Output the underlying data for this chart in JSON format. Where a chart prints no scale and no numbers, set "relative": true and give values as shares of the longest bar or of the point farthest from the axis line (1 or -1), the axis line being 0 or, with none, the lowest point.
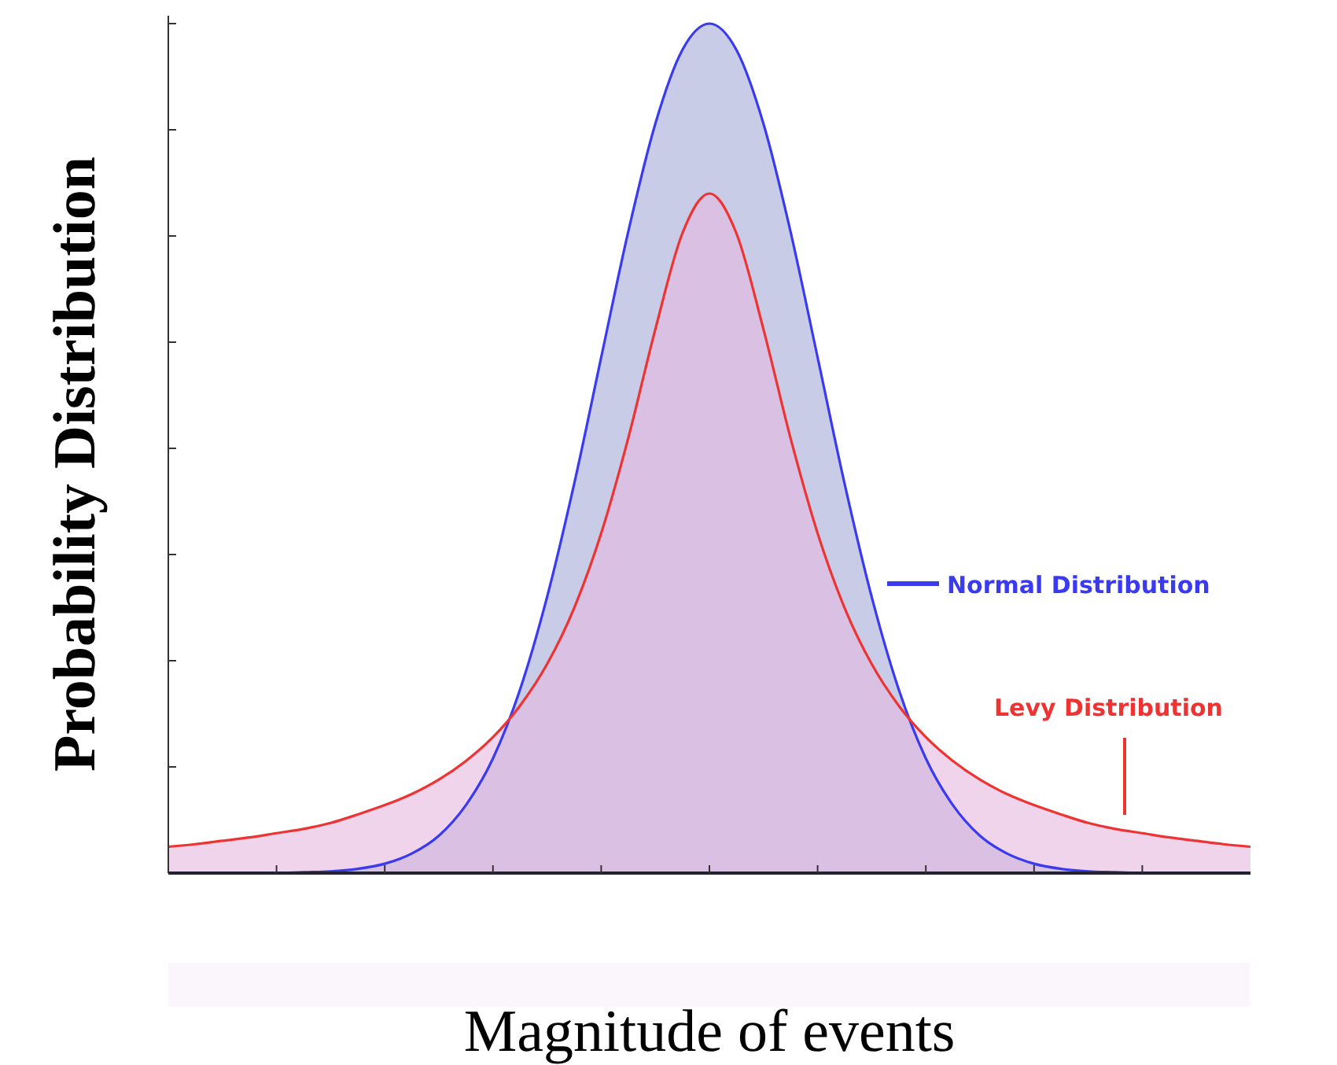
{
  "chart_data": {
    "type": "area",
    "relative": true,
    "xlabel": "Magnitude of events",
    "ylabel": "Probability Distribution",
    "legend": "right",
    "categories": [
      null,
      null,
      null,
      null,
      null,
      null,
      null,
      null,
      null,
      null,
      null,
      null,
      null,
      null,
      null,
      null,
      null,
      null,
      null,
      null,
      null,
      null,
      null,
      null,
      null,
      null,
      null,
      null,
      null,
      null,
      null,
      null,
      null,
      null,
      null,
      null,
      null,
      null,
      null,
      null,
      null
    ],
    "series": [
      {
        "name": "Normal Distribution",
        "color": "#3a3af0",
        "values": [
          0,
          0,
          0,
          0,
          0,
          0.001,
          0.002,
          0.005,
          0.011,
          0.023,
          0.044,
          0.08,
          0.135,
          0.216,
          0.325,
          0.458,
          0.607,
          0.755,
          0.882,
          0.969,
          1,
          0.969,
          0.882,
          0.755,
          0.607,
          0.458,
          0.325,
          0.216,
          0.135,
          0.08,
          0.044,
          0.023,
          0.011,
          0.005,
          0.002,
          0.001,
          0,
          0,
          0,
          0,
          0
        ]
      },
      {
        "name": "Levy Distribution",
        "color": "#ee3333",
        "values": [
          0.031,
          0.034,
          0.038,
          0.042,
          0.047,
          0.052,
          0.059,
          0.069,
          0.08,
          0.093,
          0.11,
          0.132,
          0.16,
          0.197,
          0.246,
          0.312,
          0.4,
          0.512,
          0.64,
          0.753,
          0.8,
          0.753,
          0.64,
          0.512,
          0.4,
          0.312,
          0.246,
          0.197,
          0.16,
          0.132,
          0.11,
          0.093,
          0.08,
          0.069,
          0.059,
          0.052,
          0.047,
          0.042,
          0.038,
          0.034,
          0.031
        ]
      }
    ]
  }
}
